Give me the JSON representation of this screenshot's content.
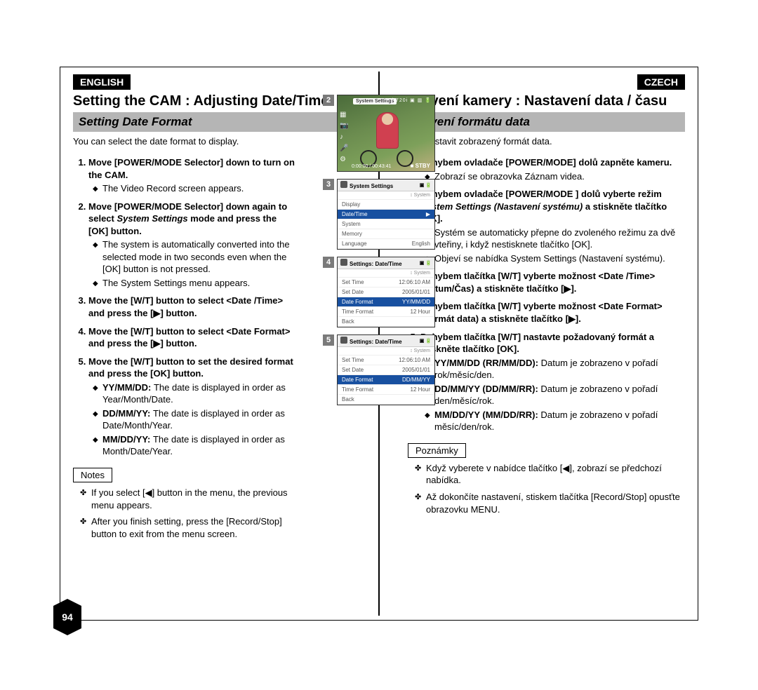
{
  "page_number": "94",
  "left": {
    "lang": "ENGLISH",
    "title": "Setting the CAM : Adjusting Date/Time",
    "section": "Setting Date Format",
    "intro": "You can select the date format to display.",
    "steps": [
      {
        "text": "Move [POWER/MODE Selector] down to turn on the CAM.",
        "sub": [
          "The Video Record screen appears."
        ]
      },
      {
        "text_pre": "Move [POWER/MODE Selector] down again to select ",
        "em": "System Settings",
        "text_post": " mode and press the [OK] button.",
        "sub": [
          "The system is automatically converted into the selected mode in two seconds even when the [OK] button is not pressed.",
          "The System Settings menu appears."
        ]
      },
      {
        "text": "Move the [W/T] button to select <Date /Time> and press the [▶] button."
      },
      {
        "text": "Move the [W/T] button to select <Date Format> and press the [▶] button."
      },
      {
        "text": "Move the [W/T] button to set the desired format and press the [OK] button.",
        "sub": [
          "YY/MM/DD: The date is displayed in order as Year/Month/Date.",
          "DD/MM/YY: The date is displayed in order as Date/Month/Year.",
          "MM/DD/YY: The date is displayed in order as Month/Date/Year."
        ],
        "sub_bold_prefix": [
          "YY/MM/DD:",
          "DD/MM/YY:",
          "MM/DD/YY:"
        ]
      }
    ],
    "notes_label": "Notes",
    "notes": [
      "If you select [◀] button in the menu, the previous menu appears.",
      "After you finish setting, press the [Record/Stop] button to exit from the menu screen."
    ]
  },
  "right": {
    "lang": "CZECH",
    "title": "Nastavení kamery : Nastavení data / času",
    "section": "Nastavení formátu data",
    "intro": "Můžete nastavit zobrazený formát data.",
    "steps": [
      {
        "text": "Pohybem ovladače [POWER/MODE] dolů zapněte kameru.",
        "sub": [
          "Zobrazí se obrazovka Záznam videa."
        ]
      },
      {
        "text_pre": "Pohybem ovladače [POWER/MODE ] dolů vyberte režim ",
        "em": "System Settings (Nastavení systému)",
        "text_post": " a stiskněte tlačítko [OK].",
        "sub": [
          "Systém se automaticky přepne do zvoleného režimu za dvě vteřiny, i když nestisknete tlačítko [OK].",
          "Objeví se nabídka System Settings (Nastavení systému)."
        ]
      },
      {
        "text": "Pohybem tlačítka [W/T] vyberte možnost <Date /Time> (Datum/Čas) a stiskněte tlačítko [▶]."
      },
      {
        "text": "Pohybem tlačítka [W/T] vyberte možnost <Date Format> (Formát data) a stiskněte tlačítko [▶]."
      },
      {
        "text": "Pohybem tlačítka [W/T] nastavte požadovaný formát a stiskněte tlačítko [OK].",
        "sub": [
          "YY/MM/DD (RR/MM/DD): Datum je zobrazeno v pořadí rok/měsíc/den.",
          "DD/MM/YY (DD/MM/RR): Datum je zobrazeno v pořadí den/měsíc/rok.",
          "MM/DD/YY (MM/DD/RR): Datum je zobrazeno v pořadí měsíc/den/rok."
        ],
        "sub_bold_prefix": [
          "YY/MM/DD (RR/MM/DD):",
          "DD/MM/YY (DD/MM/RR):",
          "MM/DD/YY (MM/DD/RR):"
        ]
      }
    ],
    "notes_label": "Poznámky",
    "notes": [
      "Když vyberete v nabídce tlačítko [◀], zobrazí se předchozí nabídka.",
      "Až dokončíte nastavení, stiskem tlačítka [Record/Stop] opusťte obrazovku MENU."
    ]
  },
  "screens": {
    "s2": {
      "num": "2",
      "badge": "System Settings",
      "top": "F / 720i  ▣ ▥ 🔋",
      "timer": "0:00:00 / 00:43:41",
      "stby": "■ STBY"
    },
    "s3": {
      "num": "3",
      "header": "System Settings",
      "right_tag": "↕ System",
      "rows": [
        {
          "l": "Display",
          "r": "",
          "sel": false
        },
        {
          "l": "Date/Time",
          "r": "▶",
          "sel": true
        },
        {
          "l": "System",
          "r": "",
          "sel": false
        },
        {
          "l": "Memory",
          "r": "",
          "sel": false
        },
        {
          "l": "Language",
          "r": "English",
          "sel": false
        }
      ]
    },
    "s4": {
      "num": "4",
      "header": "Settings: Date/Time",
      "right_tag": "↕ System",
      "rows": [
        {
          "l": "Set Time",
          "r": "12:06:10 AM",
          "sel": false
        },
        {
          "l": "Set Date",
          "r": "2005/01/01",
          "sel": false
        },
        {
          "l": "Date Format",
          "r": "YY/MM/DD",
          "sel": true
        },
        {
          "l": "Time Format",
          "r": "12 Hour",
          "sel": false
        },
        {
          "l": "Back",
          "r": "",
          "sel": false
        }
      ]
    },
    "s5": {
      "num": "5",
      "header": "Settings: Date/Time",
      "right_tag": "↕ System",
      "rows": [
        {
          "l": "Set Time",
          "r": "12:06:10 AM",
          "sel": false
        },
        {
          "l": "Set Date",
          "r": "2005/01/01",
          "sel": false
        },
        {
          "l": "Date Format",
          "r": "DD/MM/YY",
          "sel": true
        },
        {
          "l": "Time Format",
          "r": "12 Hour",
          "sel": false
        },
        {
          "l": "Back",
          "r": "",
          "sel": false
        }
      ]
    }
  }
}
